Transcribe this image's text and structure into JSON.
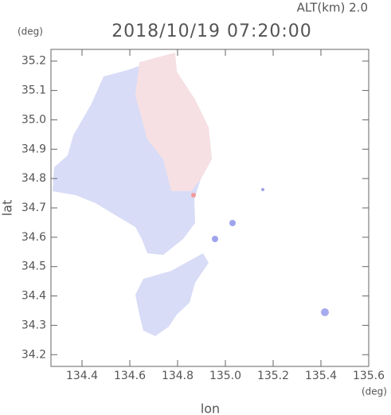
{
  "chart_data": {
    "type": "map",
    "title": "2018/10/19 07:20:00",
    "subtitle": "ALT(km) 2.0",
    "ylabel": "lat",
    "xlabel": "lon",
    "yunit": "(deg)",
    "xunit": "(deg)",
    "xlim": [
      134.27,
      135.6
    ],
    "ylim": [
      34.16,
      35.24
    ],
    "xticks": [
      134.4,
      134.6,
      134.8,
      {
        "value": 135,
        "label": "135.0"
      },
      135.2,
      135.4,
      135.6
    ],
    "yticks": [
      34.2,
      34.3,
      34.4,
      34.5,
      34.6,
      34.7,
      34.8,
      34.9,
      {
        "value": 35,
        "label": "35.0"
      },
      35.1,
      35.2
    ]
  }
}
